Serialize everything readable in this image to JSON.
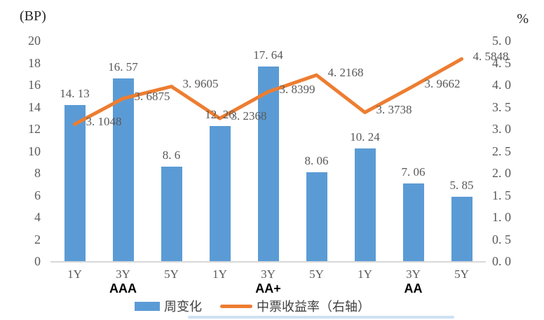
{
  "chart_data": {
    "type": "bar",
    "combo": "bar+line-dual-axis",
    "categories": [
      "1Y",
      "3Y",
      "5Y",
      "1Y",
      "3Y",
      "5Y",
      "1Y",
      "3Y",
      "5Y"
    ],
    "category_groups": [
      {
        "label": "AAA",
        "span": [
          0,
          2
        ]
      },
      {
        "label": "AA+",
        "span": [
          3,
          5
        ]
      },
      {
        "label": "AA",
        "span": [
          6,
          8
        ]
      }
    ],
    "series": [
      {
        "name": "周变化",
        "type": "bar",
        "axis": "left",
        "color": "#5B9BD5",
        "values": [
          14.13,
          16.57,
          8.6,
          12.26,
          17.64,
          8.06,
          10.24,
          7.06,
          5.85
        ]
      },
      {
        "name": "中票收益率（右轴）",
        "type": "line",
        "axis": "right",
        "color": "#ED7D31",
        "values": [
          3.1048,
          3.6875,
          3.9605,
          3.2368,
          3.8399,
          4.2168,
          3.3738,
          3.9662,
          4.5848
        ]
      }
    ],
    "left_axis": {
      "label": "(BP)",
      "min": 0,
      "max": 20,
      "step": 2
    },
    "right_axis": {
      "label": "%",
      "min": 0,
      "max": 5,
      "step": 0.5
    },
    "grid": false,
    "data_labels": true,
    "legend_position": "bottom"
  },
  "colors": {
    "bar": "#5B9BD5",
    "line": "#ED7D31",
    "tick_text": "#595959",
    "group_label_text": "#000000",
    "axis_line": "#D9D9D9",
    "bottom_divider": "#9DC3E6",
    "background": "#FFFFFF"
  }
}
